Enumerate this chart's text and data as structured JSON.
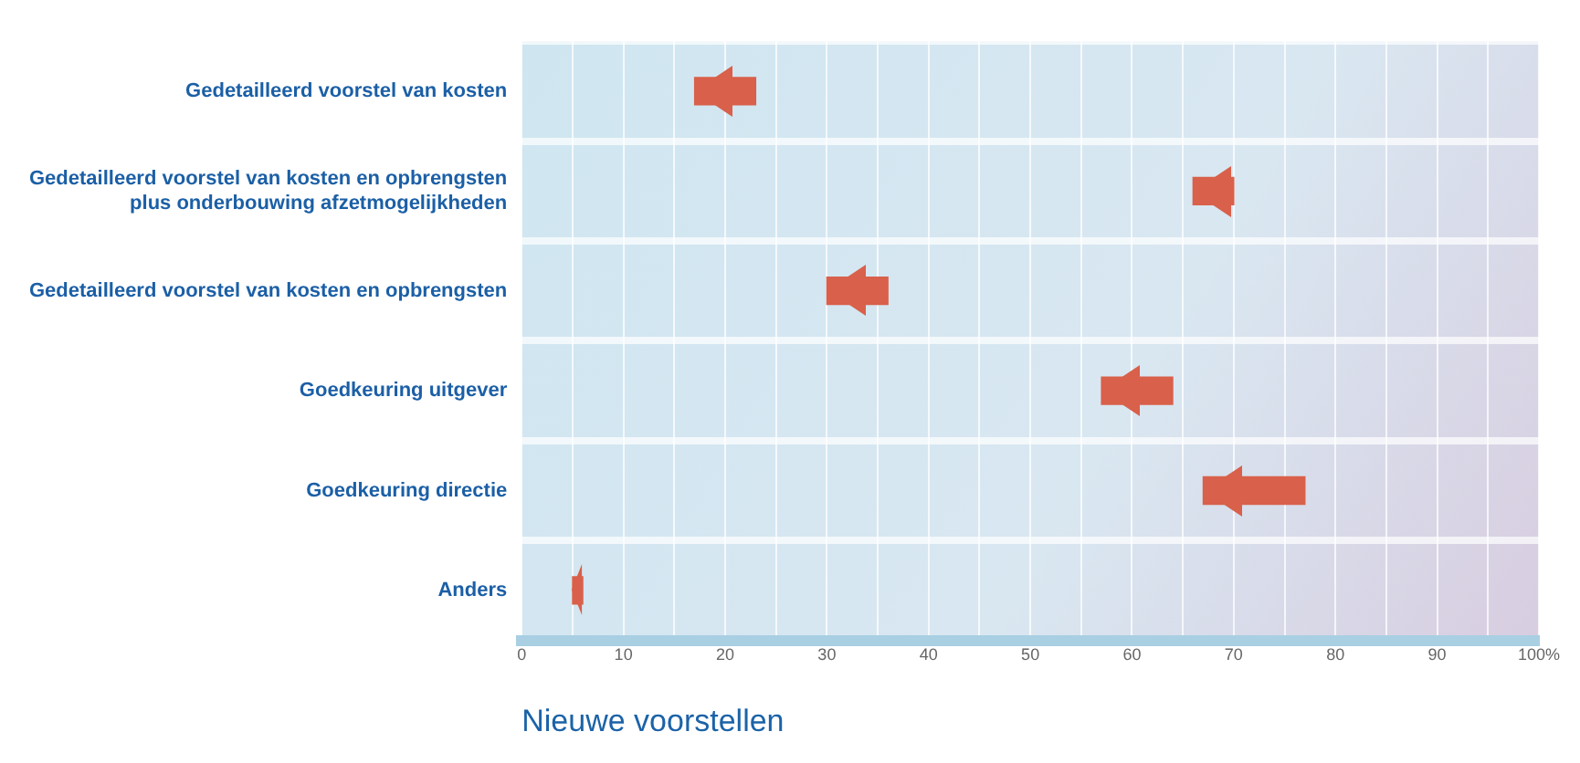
{
  "chart_data": {
    "type": "bar",
    "orientation": "horizontal",
    "xlabel": "Nieuwe voorstellen",
    "categories": [
      "Gedetailleerd voorstel van kosten",
      "Gedetailleerd voorstel van kosten en opbrengsten plus onderbouwing afzetmogelijkheden",
      "Gedetailleerd voorstel van kosten en opbrengsten",
      "Goedkeuring uitgever",
      "Goedkeuring directie",
      "Anders"
    ],
    "base": [
      23,
      70,
      36,
      64,
      77,
      6
    ],
    "values": [
      -6,
      -4,
      -6,
      -7,
      -10,
      -1
    ],
    "color": "#d9604a",
    "xlim": [
      0,
      100
    ],
    "xticks": [
      0,
      {
        "value": 5,
        "label": null
      },
      10,
      {
        "value": 15,
        "label": null
      },
      20,
      {
        "value": 25,
        "label": null
      },
      30,
      {
        "value": 35,
        "label": null
      },
      40,
      {
        "value": 45,
        "label": null
      },
      50,
      {
        "value": 55,
        "label": null
      },
      60,
      {
        "value": 65,
        "label": null
      },
      70,
      {
        "value": 75,
        "label": null
      },
      80,
      {
        "value": 85,
        "label": null
      },
      90,
      {
        "value": 95,
        "label": null
      },
      {
        "value": 100,
        "label": "100%"
      }
    ],
    "grid": true,
    "legend": false
  }
}
